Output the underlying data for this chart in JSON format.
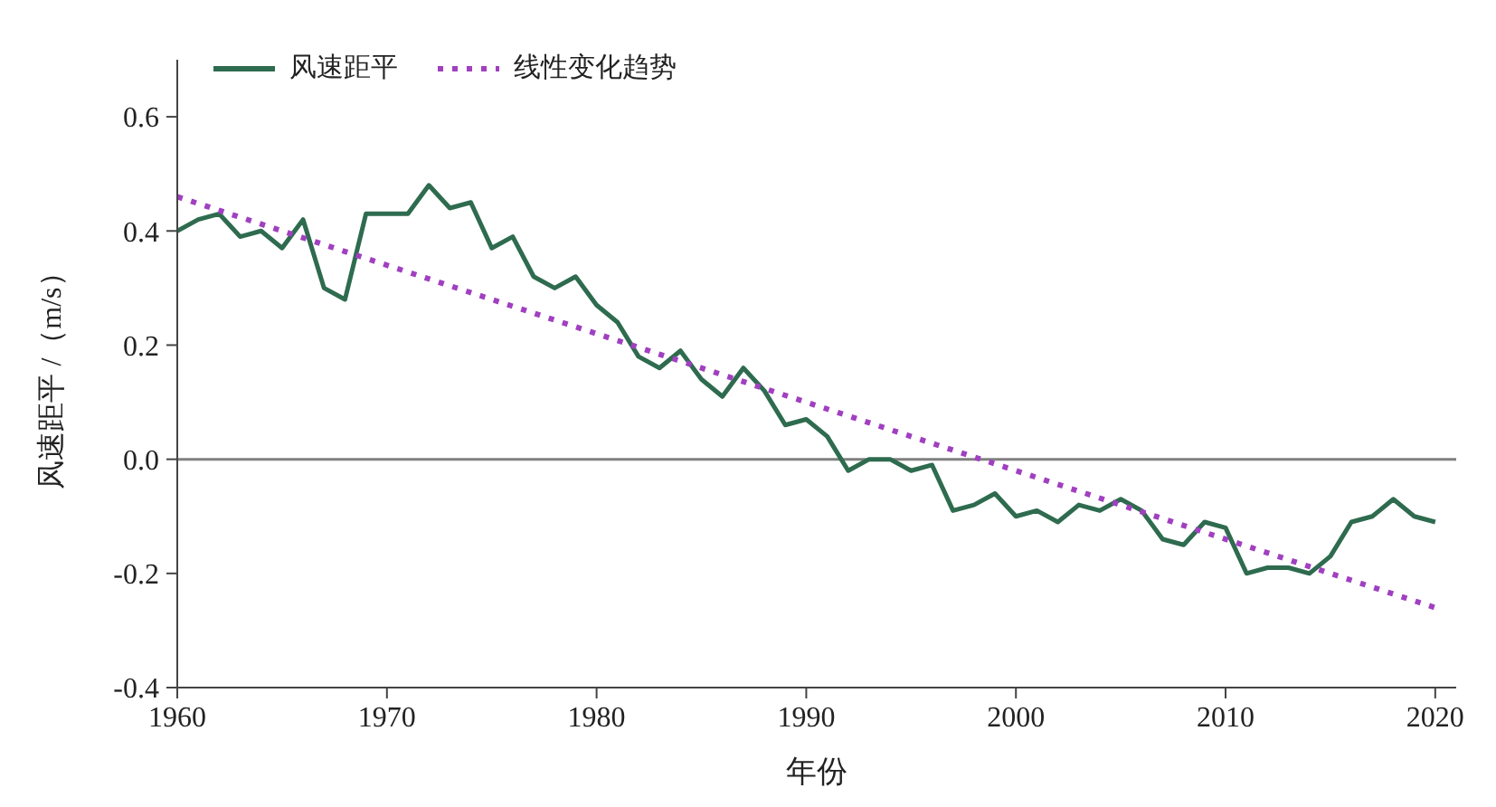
{
  "chart_data": {
    "type": "line",
    "xlabel": "年份",
    "ylabel": "风速距平 /（m/s）",
    "xlim": [
      1960,
      2021
    ],
    "xticks": [
      1960,
      1970,
      1980,
      1990,
      2000,
      2010,
      2020
    ],
    "ylim": [
      -0.4,
      0.7
    ],
    "yticks": [
      {
        "value": -0.4,
        "label": "-0.4"
      },
      {
        "value": -0.2,
        "label": "-0.2"
      },
      {
        "value": 0,
        "label": "0.0"
      },
      {
        "value": 0.2,
        "label": "0.2"
      },
      {
        "value": 0.4,
        "label": "0.4"
      },
      {
        "value": 0.6,
        "label": "0.6"
      }
    ],
    "legend": "top left",
    "marker": "none",
    "ref_lines": [
      {
        "axis": "y",
        "value": 0,
        "color": "#808080"
      }
    ],
    "series": [
      {
        "name": "风速距平",
        "color": "#2e6b4f",
        "line_style": "solid",
        "x": [
          1960,
          1961,
          1962,
          1963,
          1964,
          1965,
          1966,
          1967,
          1968,
          1969,
          1970,
          1971,
          1972,
          1973,
          1974,
          1975,
          1976,
          1977,
          1978,
          1979,
          1980,
          1981,
          1982,
          1983,
          1984,
          1985,
          1986,
          1987,
          1988,
          1989,
          1990,
          1991,
          1992,
          1993,
          1994,
          1995,
          1996,
          1997,
          1998,
          1999,
          2000,
          2001,
          2002,
          2003,
          2004,
          2005,
          2006,
          2007,
          2008,
          2009,
          2010,
          2011,
          2012,
          2013,
          2014,
          2015,
          2016,
          2017,
          2018,
          2019,
          2020
        ],
        "values": [
          0.4,
          0.42,
          0.43,
          0.39,
          0.4,
          0.37,
          0.42,
          0.3,
          0.28,
          0.43,
          0.43,
          0.43,
          0.48,
          0.44,
          0.45,
          0.37,
          0.39,
          0.32,
          0.3,
          0.32,
          0.27,
          0.24,
          0.18,
          0.16,
          0.19,
          0.14,
          0.11,
          0.16,
          0.12,
          0.06,
          0.07,
          0.04,
          -0.02,
          0.0,
          0.0,
          -0.02,
          -0.01,
          -0.09,
          -0.08,
          -0.06,
          -0.1,
          -0.09,
          -0.11,
          -0.08,
          -0.09,
          -0.07,
          -0.09,
          -0.14,
          -0.15,
          -0.11,
          -0.12,
          -0.2,
          -0.19,
          -0.19,
          -0.2,
          -0.17,
          -0.11,
          -0.1,
          -0.07,
          -0.1,
          -0.11
        ]
      },
      {
        "name": "线性变化趋势",
        "color": "#a040c0",
        "line_style": "dotted",
        "x": [
          1960,
          2020
        ],
        "values": [
          0.46,
          -0.26
        ]
      }
    ]
  }
}
